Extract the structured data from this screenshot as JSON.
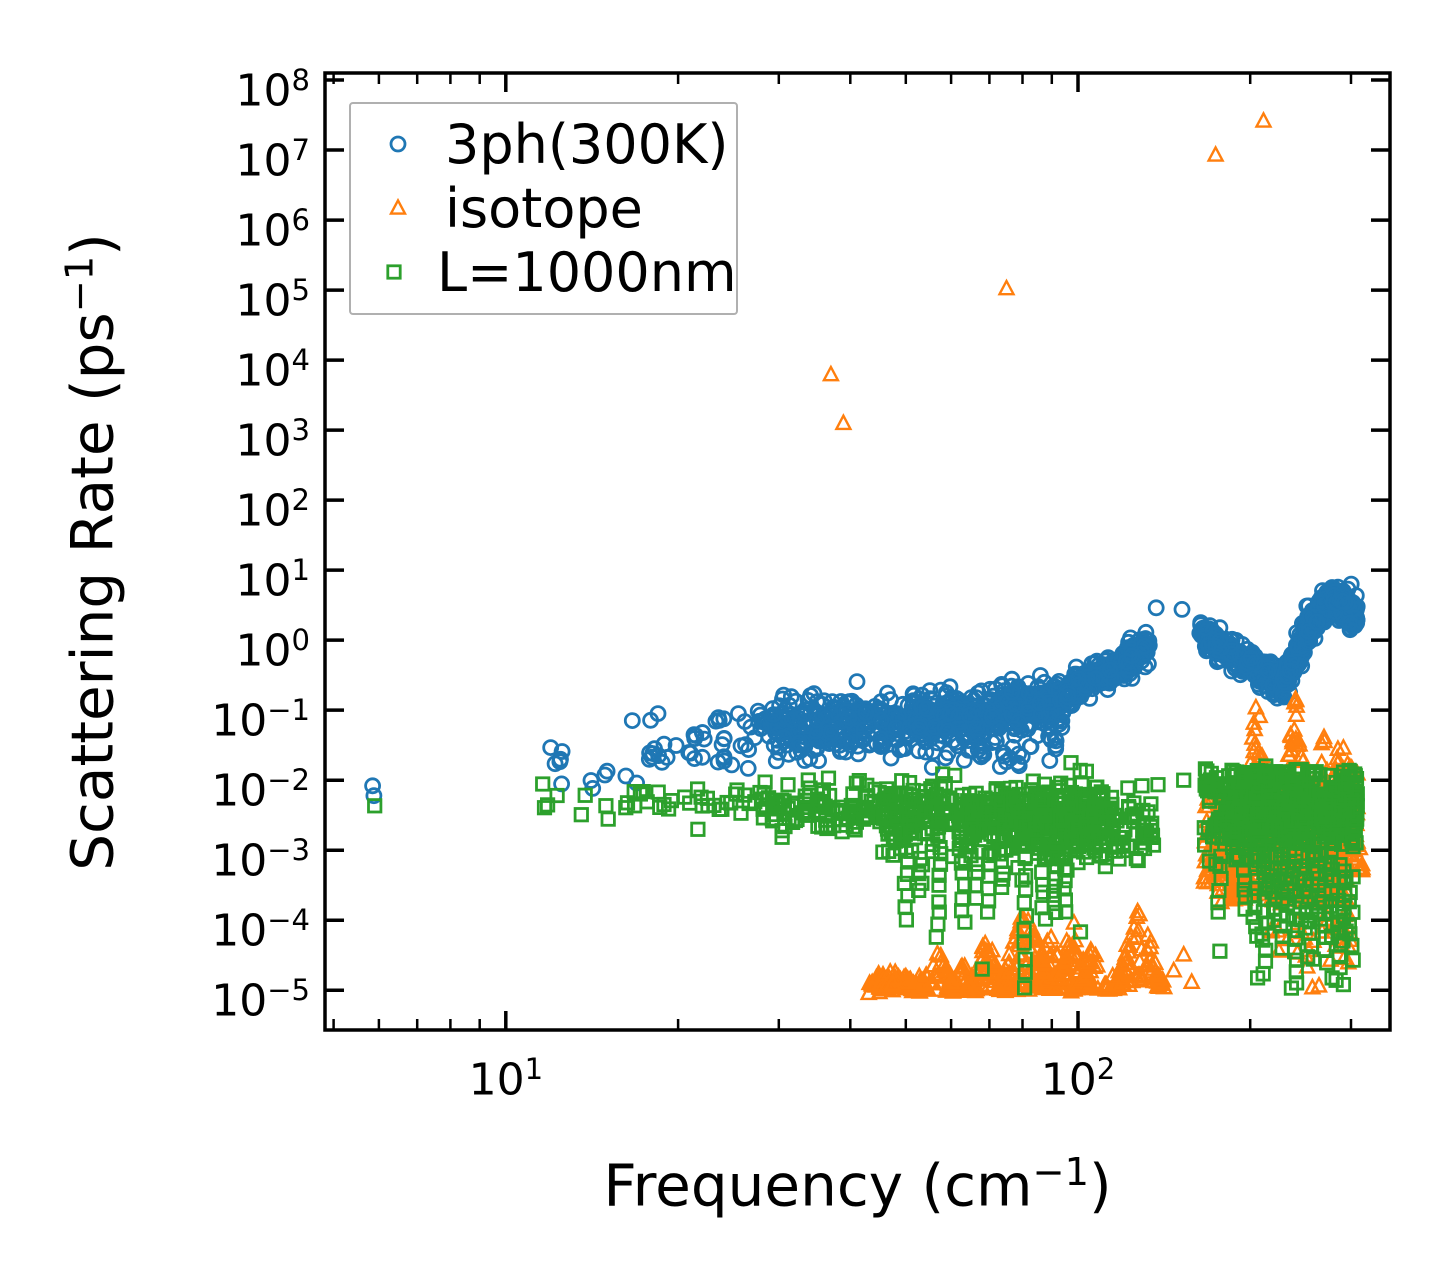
{
  "figure": {
    "background": "#ffffff",
    "text_color": "#000000",
    "spine_color": "#000000",
    "legend_border_color": "#b0b0b0"
  },
  "chart_data": {
    "type": "scatter",
    "title": "",
    "xlabel": "Frequency (cm⁻¹)",
    "ylabel": "Scattering Rate (ps⁻¹)",
    "xlabel_parts": {
      "pre": "Frequency (cm",
      "sup": "−1",
      "post": ")"
    },
    "ylabel_parts": {
      "pre": "Scattering Rate (ps",
      "sup": "−1",
      "post": ")"
    },
    "xscale": "log",
    "yscale": "log",
    "xlim": [
      4.83,
      351
    ],
    "ylim": [
      2.7e-06,
      126000000.0
    ],
    "grid": false,
    "tick_direction": "in",
    "legend_position": "upper left",
    "x_ticks": {
      "major": [
        {
          "value": 10,
          "base": "10",
          "exp": "1"
        },
        {
          "value": 100,
          "base": "10",
          "exp": "2"
        }
      ],
      "minor": [
        5,
        6,
        7,
        8,
        9,
        20,
        30,
        40,
        50,
        60,
        70,
        80,
        90,
        200,
        300
      ]
    },
    "y_ticks": {
      "major_exponents": [
        8,
        7,
        6,
        5,
        4,
        3,
        2,
        1,
        0,
        -1,
        -2,
        -3,
        -4,
        -5
      ]
    },
    "seed": 20,
    "series": [
      {
        "name": "3ph-300K",
        "label": "3ph(300K)",
        "marker": "circle",
        "color": "#1f77b4",
        "segments": [
          {
            "kind": "pts",
            "xy": [
              [
                5.85,
                0.0083
              ],
              [
                5.88,
                0.006
              ]
            ]
          },
          {
            "kind": "band",
            "f": [
              11.5,
              15.2
            ],
            "v": [
              0.021,
              0.0095
            ],
            "sd": 0.16,
            "n": 10
          },
          {
            "kind": "band",
            "f": [
              16.2,
              19.5
            ],
            "v": [
              0.027,
              0.024
            ],
            "sd": 0.27,
            "n": 14
          },
          {
            "kind": "band",
            "f": [
              19.5,
              29
            ],
            "v": [
              0.03,
              0.046
            ],
            "sd": 0.2,
            "n": 40
          },
          {
            "kind": "band",
            "f": [
              29,
              52
            ],
            "v": [
              0.052,
              0.068
            ],
            "sd": 0.21,
            "n": 280
          },
          {
            "kind": "band",
            "f": [
              52,
              95
            ],
            "v": [
              0.07,
              0.135
            ],
            "sd": 0.16,
            "n": 430
          },
          {
            "kind": "band",
            "f": [
              55,
              92
            ],
            "v": [
              0.022,
              0.03
            ],
            "sd": 0.1,
            "n": 40
          },
          {
            "kind": "band",
            "f": [
              95,
              121
            ],
            "v": [
              0.16,
              0.48
            ],
            "sd": 0.11,
            "n": 170
          },
          {
            "kind": "band",
            "f": [
              121,
              134
            ],
            "v": [
              0.58,
              0.78
            ],
            "sd": 0.11,
            "n": 80
          },
          {
            "kind": "pts",
            "xy": [
              [
                137,
                2.9
              ],
              [
                152,
                2.75
              ]
            ]
          },
          {
            "kind": "band",
            "f": [
              163,
              228
            ],
            "v": [
              1.25,
              0.24
            ],
            "sd": 0.1,
            "n": 300
          },
          {
            "kind": "band",
            "f": [
              228,
              250
            ],
            "v": [
              0.24,
              1.1
            ],
            "sd": 0.1,
            "n": 120
          },
          {
            "kind": "band",
            "f": [
              250,
              278
            ],
            "v": [
              1.3,
              4.0
            ],
            "sd": 0.11,
            "n": 160,
            "vmax": 6.0
          },
          {
            "kind": "band",
            "f": [
              278,
              308
            ],
            "v": [
              4.0,
              2.0
            ],
            "sd": 0.13,
            "n": 160,
            "vmax": 6.5
          }
        ]
      },
      {
        "name": "isotope",
        "label": "isotope",
        "marker": "triangle",
        "color": "#ff7f0e",
        "segments": [
          {
            "kind": "pts",
            "xy": [
              [
                37,
                6200
              ],
              [
                38.9,
                1250
              ],
              [
                75,
                105000
              ],
              [
                174,
                8500000
              ],
              [
                211,
                26000000
              ]
            ]
          },
          {
            "kind": "band",
            "f": [
              43,
              54
            ],
            "v": [
              1.25e-05,
              1.25e-05
            ],
            "sd": 0.055,
            "n": 60
          },
          {
            "kind": "lobe",
            "fc": 48,
            "fw": 0.03,
            "vbase": 1e-05,
            "vpeak": 2.3e-05,
            "n": 26
          },
          {
            "kind": "lobe",
            "fc": 57,
            "fw": 0.035,
            "vbase": 1e-05,
            "vpeak": 3.6e-05,
            "n": 40
          },
          {
            "kind": "lobe",
            "fc": 63,
            "fw": 0.03,
            "vbase": 1e-05,
            "vpeak": 2.7e-05,
            "n": 30
          },
          {
            "kind": "lobe",
            "fc": 69,
            "fw": 0.035,
            "vbase": 1e-05,
            "vpeak": 7e-05,
            "n": 55
          },
          {
            "kind": "lobe",
            "fc": 81,
            "fw": 0.05,
            "vbase": 1e-05,
            "vpeak": 0.00017,
            "n": 100
          },
          {
            "kind": "lobe",
            "fc": 90,
            "fw": 0.04,
            "vbase": 1e-05,
            "vpeak": 9e-05,
            "n": 60
          },
          {
            "kind": "lobe",
            "fc": 98,
            "fw": 0.035,
            "vbase": 1e-05,
            "vpeak": 0.000115,
            "n": 55
          },
          {
            "kind": "lobe",
            "fc": 106,
            "fw": 0.03,
            "vbase": 1e-05,
            "vpeak": 4.5e-05,
            "n": 26
          },
          {
            "kind": "lobe",
            "fc": 128,
            "fw": 0.045,
            "vbase": 1.1e-05,
            "vpeak": 0.00019,
            "n": 80
          },
          {
            "kind": "pts",
            "xy": [
              [
                112,
                1.2e-05
              ],
              [
                115,
                1.6e-05
              ],
              [
                118,
                1.05e-05
              ],
              [
                147,
                1.9e-05
              ],
              [
                153,
                3.2e-05
              ],
              [
                158,
                1.3e-05
              ]
            ]
          },
          {
            "kind": "band",
            "f": [
              166,
              180
            ],
            "v": [
              0.0009,
              0.0009
            ],
            "sd": 0.42,
            "n": 60
          },
          {
            "kind": "band",
            "f": [
              180,
              196
            ],
            "v": [
              0.0016,
              0.0016
            ],
            "sd": 0.38,
            "n": 45
          },
          {
            "kind": "lobe",
            "fc": 206,
            "fw": 0.045,
            "vbase": 0.0002,
            "vpeak": 0.21,
            "n": 220
          },
          {
            "kind": "lobe",
            "fc": 240,
            "fw": 0.04,
            "vbase": 0.0002,
            "vpeak": 0.21,
            "n": 200
          },
          {
            "kind": "lobe",
            "fc": 268,
            "fw": 0.028,
            "vbase": 0.0002,
            "vpeak": 0.078,
            "n": 140
          },
          {
            "kind": "band",
            "f": [
              280,
              308
            ],
            "v": [
              0.0035,
              0.0035
            ],
            "sd": 0.45,
            "n": 90
          },
          {
            "kind": "lobe",
            "fc": 297,
            "fw": 0.025,
            "vbase": 0.0005,
            "vpeak": 0.024,
            "n": 40
          },
          {
            "kind": "band",
            "f": [
              215,
              300
            ],
            "v": [
              6e-05,
              6e-05
            ],
            "sd": 0.4,
            "n": 40
          }
        ]
      },
      {
        "name": "L-1000nm",
        "label": "L=1000nm",
        "marker": "square",
        "color": "#2ca02c",
        "segments": [
          {
            "kind": "pts",
            "xy": [
              [
                5.9,
                0.0043
              ],
              [
                11.6,
                0.0088
              ]
            ]
          },
          {
            "kind": "band",
            "f": [
              11.5,
              15.2
            ],
            "v": [
              0.0044,
              0.0044
            ],
            "sd": 0.11,
            "n": 7
          },
          {
            "kind": "band",
            "f": [
              16,
              28
            ],
            "v": [
              0.0046,
              0.0046
            ],
            "sd": 0.13,
            "n": 32
          },
          {
            "kind": "band",
            "f": [
              28,
              45
            ],
            "v": [
              0.0043,
              0.0043
            ],
            "sd": 0.19,
            "n": 100
          },
          {
            "kind": "band",
            "f": [
              45,
              62
            ],
            "v": [
              0.0031,
              0.0031
            ],
            "sd": 0.24,
            "n": 130
          },
          {
            "kind": "band",
            "f": [
              62,
              78
            ],
            "v": [
              0.0029,
              0.0029
            ],
            "sd": 0.24,
            "n": 140
          },
          {
            "kind": "band",
            "f": [
              78,
              84
            ],
            "v": [
              0.0026,
              0.0026
            ],
            "sd": 0.27,
            "n": 50
          },
          {
            "kind": "band",
            "f": [
              84,
              112
            ],
            "v": [
              0.0025,
              0.0025
            ],
            "sd": 0.28,
            "n": 220
          },
          {
            "kind": "band",
            "f": [
              112,
              136
            ],
            "v": [
              0.0023,
              0.0023
            ],
            "sd": 0.27,
            "n": 55
          },
          {
            "kind": "drip",
            "f": 50,
            "vtop": 0.001,
            "vbot": 0.000105,
            "n": 7
          },
          {
            "kind": "drip",
            "f": 53,
            "vtop": 0.0008,
            "vbot": 0.00026,
            "n": 5
          },
          {
            "kind": "drip",
            "f": 57,
            "vtop": 0.001,
            "vbot": 5.6e-05,
            "n": 8
          },
          {
            "kind": "drip",
            "f": 63,
            "vtop": 0.0008,
            "vbot": 8.5e-05,
            "n": 6
          },
          {
            "kind": "drip",
            "f": 66.5,
            "vtop": 0.001,
            "vbot": 0.0002,
            "n": 5
          },
          {
            "kind": "drip",
            "f": 70,
            "vtop": 0.0009,
            "vbot": 0.00014,
            "n": 6
          },
          {
            "kind": "drip",
            "f": 74,
            "vtop": 0.001,
            "vbot": 0.00028,
            "n": 5
          },
          {
            "kind": "drip",
            "f": 80.5,
            "vtop": 0.0012,
            "vbot": 1.1e-05,
            "n": 11
          },
          {
            "kind": "drip",
            "f": 87,
            "vtop": 0.0007,
            "vbot": 0.00011,
            "n": 6
          },
          {
            "kind": "drip",
            "f": 91,
            "vtop": 0.0006,
            "vbot": 0.00012,
            "n": 6
          },
          {
            "kind": "drip",
            "f": 95,
            "vtop": 0.0008,
            "vbot": 0.00013,
            "n": 6
          },
          {
            "kind": "pts",
            "xy": [
              [
                68,
                2e-05
              ],
              [
                101,
                6.8e-05
              ],
              [
                138,
                0.0086
              ],
              [
                153,
                0.01
              ],
              [
                167,
                0.0145
              ]
            ]
          },
          {
            "kind": "band",
            "f": [
              166,
              182
            ],
            "v": [
              0.0035,
              0.0035
            ],
            "sd": 0.33,
            "n": 45
          },
          {
            "kind": "pts",
            "xy": [
              [
                168,
                0.0135
              ],
              [
                171,
                0.0125
              ]
            ]
          },
          {
            "kind": "band",
            "f": [
              182,
              308
            ],
            "v": [
              0.0036,
              0.0036
            ],
            "sd": 0.3,
            "n": 600,
            "vmax": 0.0145
          },
          {
            "kind": "band",
            "f": [
              195,
              228
            ],
            "v": [
              0.0115,
              0.0115
            ],
            "sd": 0.05,
            "n": 50
          },
          {
            "kind": "drip",
            "f": 177,
            "vtop": 0.0008,
            "vbot": 0.00012,
            "n": 6
          },
          {
            "kind": "drip",
            "f": 196,
            "vtop": 0.001,
            "vbot": 0.00015,
            "n": 7
          },
          {
            "kind": "drip",
            "f": 204,
            "vtop": 0.0008,
            "vbot": 6e-05,
            "n": 9
          },
          {
            "kind": "drip",
            "f": 211,
            "vtop": 0.001,
            "vbot": 1.8e-05,
            "n": 13
          },
          {
            "kind": "drip",
            "f": 219,
            "vtop": 0.0006,
            "vbot": 0.0001,
            "n": 7
          },
          {
            "kind": "drip",
            "f": 226,
            "vtop": 0.0008,
            "vbot": 4e-05,
            "n": 9
          },
          {
            "kind": "drip",
            "f": 233,
            "vtop": 0.0006,
            "vbot": 0.00012,
            "n": 7
          },
          {
            "kind": "drip",
            "f": 240,
            "vtop": 0.0008,
            "vbot": 1.3e-05,
            "n": 13
          },
          {
            "kind": "drip",
            "f": 248,
            "vtop": 0.0006,
            "vbot": 8e-05,
            "n": 8
          },
          {
            "kind": "drip",
            "f": 256,
            "vtop": 0.0007,
            "vbot": 3e-05,
            "n": 9
          },
          {
            "kind": "drip",
            "f": 263,
            "vtop": 0.0005,
            "vbot": 0.0001,
            "n": 7
          },
          {
            "kind": "drip",
            "f": 270,
            "vtop": 0.0006,
            "vbot": 2.5e-05,
            "n": 9
          },
          {
            "kind": "drip",
            "f": 278,
            "vtop": 0.0005,
            "vbot": 6e-05,
            "n": 7
          },
          {
            "kind": "drip",
            "f": 285,
            "vtop": 0.0006,
            "vbot": 1.4e-05,
            "n": 11
          },
          {
            "kind": "drip",
            "f": 293,
            "vtop": 0.0005,
            "vbot": 5e-05,
            "n": 7
          },
          {
            "kind": "drip",
            "f": 300,
            "vtop": 0.0004,
            "vbot": 2.8e-05,
            "n": 8
          },
          {
            "kind": "pts",
            "xy": [
              [
                206,
                1.5e-05
              ],
              [
                236,
                1.07e-05
              ],
              [
                252,
                3e-05
              ],
              [
                278,
                1.5e-05
              ],
              [
                291,
                1.2e-05
              ],
              [
                177,
                3.6e-05
              ]
            ]
          }
        ]
      }
    ]
  }
}
